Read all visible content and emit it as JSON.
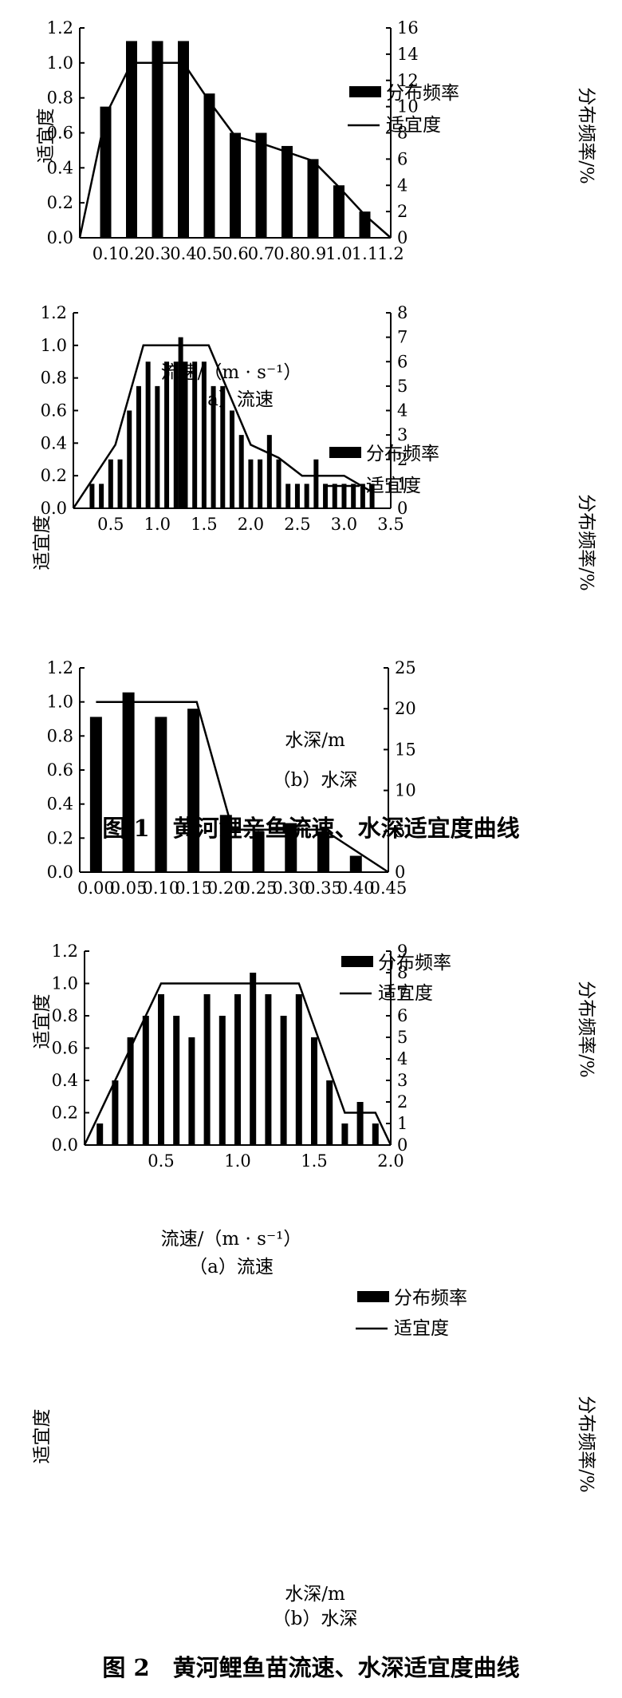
{
  "figure1": {
    "caption": "图 1　黄河鲤亲鱼流速、水深适宜度曲线",
    "charts": [
      {
        "sublabel": "（a）流速",
        "xlabel": "流速/（m · s⁻¹）",
        "ylabel_left": "适宜度",
        "ylabel_right": "分布频率/%",
        "legend_bar": "分布频率",
        "legend_line": "适宜度"
      },
      {
        "sublabel": "（b）水深",
        "xlabel": "水深/m",
        "ylabel_left": "适宜度",
        "ylabel_right": "分布频率/%",
        "legend_bar": "分布频率",
        "legend_line": "适宜度"
      }
    ]
  },
  "figure2": {
    "caption": "图 2　黄河鲤鱼苗流速、水深适宜度曲线",
    "charts": [
      {
        "sublabel": "（a）流速",
        "xlabel": "流速/（m · s⁻¹）",
        "ylabel_left": "适宜度",
        "ylabel_right": "分布频率/%",
        "legend_bar": "分布频率",
        "legend_line": "适宜度"
      },
      {
        "sublabel": "（b）水深",
        "xlabel": "水深/m",
        "ylabel_left": "适宜度",
        "ylabel_right": "分布频率/%",
        "legend_bar": "分布频率",
        "legend_line": "适宜度"
      }
    ]
  },
  "chart_data": [
    {
      "id": "c1",
      "type": "bar",
      "xlim": [
        0,
        1.2
      ],
      "ylim_left": [
        0,
        1.2
      ],
      "ylim_right": [
        0,
        16
      ],
      "x_ticks": [
        "0.1",
        "0.2",
        "0.3",
        "0.4",
        "0.5",
        "0.6",
        "0.7",
        "0.8",
        "0.9",
        "1.0",
        "1.1",
        "1.2"
      ],
      "y_ticks_left": [
        "0.0",
        "0.2",
        "0.4",
        "0.6",
        "0.8",
        "1.0",
        "1.2"
      ],
      "y_ticks_right": [
        "0",
        "2",
        "4",
        "6",
        "8",
        "10",
        "12",
        "14",
        "16"
      ],
      "bars": {
        "x": [
          0.1,
          0.2,
          0.3,
          0.4,
          0.5,
          0.6,
          0.7,
          0.8,
          0.9,
          1.0,
          1.1
        ],
        "values": [
          10,
          15,
          15,
          15,
          11,
          8,
          8,
          7,
          6,
          4,
          2
        ]
      },
      "line": {
        "x": [
          0,
          0.1,
          0.2,
          0.4,
          0.5,
          0.6,
          0.7,
          0.8,
          0.9,
          1.0,
          1.1,
          1.2
        ],
        "y": [
          0,
          0.7,
          1.0,
          1.0,
          0.78,
          0.58,
          0.54,
          0.49,
          0.44,
          0.29,
          0.13,
          0
        ]
      }
    },
    {
      "id": "c2",
      "type": "bar",
      "xlim": [
        0.1,
        3.5
      ],
      "ylim_left": [
        0,
        1.2
      ],
      "ylim_right": [
        0,
        8
      ],
      "x_ticks": [
        "0.5",
        "1.0",
        "1.5",
        "2.0",
        "2.5",
        "3.0",
        "3.5"
      ],
      "y_ticks_left": [
        "0.0",
        "0.2",
        "0.4",
        "0.6",
        "0.8",
        "1.0",
        "1.2"
      ],
      "y_ticks_right": [
        "0",
        "1",
        "2",
        "3",
        "4",
        "5",
        "6",
        "7",
        "8"
      ],
      "bars": {
        "x": [
          0.3,
          0.4,
          0.5,
          0.6,
          0.7,
          0.8,
          0.9,
          1.0,
          1.1,
          1.2,
          1.25,
          1.3,
          1.4,
          1.5,
          1.6,
          1.7,
          1.8,
          1.9,
          2.0,
          2.1,
          2.2,
          2.3,
          2.4,
          2.5,
          2.6,
          2.7,
          2.8,
          2.9,
          3.0,
          3.1,
          3.2,
          3.3
        ],
        "values": [
          1,
          1,
          2,
          2,
          4,
          5,
          6,
          5,
          6,
          6,
          7,
          6,
          6,
          6,
          5,
          5,
          4,
          3,
          2,
          2,
          3,
          2,
          1,
          1,
          1,
          2,
          1,
          1,
          1,
          1,
          1,
          1
        ]
      },
      "line": {
        "x": [
          0.1,
          0.55,
          0.85,
          1.55,
          2.0,
          2.3,
          2.55,
          3.0,
          3.3
        ],
        "y": [
          0,
          0.39,
          1.0,
          1.0,
          0.39,
          0.31,
          0.2,
          0.2,
          0.1
        ]
      }
    },
    {
      "id": "c3",
      "type": "bar",
      "xlim": [
        -0.025,
        0.45
      ],
      "ylim_left": [
        0,
        1.2
      ],
      "ylim_right": [
        0,
        25
      ],
      "x_ticks": [
        "0.00",
        "0.05",
        "0.10",
        "0.15",
        "0.20",
        "0.25",
        "0.30",
        "0.35",
        "0.40",
        "0.45"
      ],
      "y_ticks_left": [
        "0.0",
        "0.2",
        "0.4",
        "0.6",
        "0.8",
        "1.0",
        "1.2"
      ],
      "y_ticks_right": [
        "0",
        "5",
        "10",
        "15",
        "20",
        "25"
      ],
      "bars": {
        "x": [
          0.0,
          0.05,
          0.1,
          0.15,
          0.2,
          0.25,
          0.3,
          0.35,
          0.4
        ],
        "values": [
          19,
          22,
          19,
          20,
          7,
          5,
          6,
          5,
          2
        ]
      },
      "line": {
        "x": [
          0.0,
          0.155,
          0.21,
          0.35,
          0.45
        ],
        "y": [
          1.0,
          1.0,
          0.25,
          0.25,
          0
        ]
      }
    },
    {
      "id": "c4",
      "type": "bar",
      "xlim": [
        0,
        2.0
      ],
      "ylim_left": [
        0,
        1.2
      ],
      "ylim_right": [
        0,
        9
      ],
      "x_ticks": [
        "0.5",
        "1.0",
        "1.5",
        "2.0"
      ],
      "y_ticks_left": [
        "0.0",
        "0.2",
        "0.4",
        "0.6",
        "0.8",
        "1.0",
        "1.2"
      ],
      "y_ticks_right": [
        "0",
        "1",
        "2",
        "3",
        "4",
        "5",
        "6",
        "7",
        "8",
        "9"
      ],
      "bars": {
        "x": [
          0.1,
          0.2,
          0.3,
          0.4,
          0.5,
          0.6,
          0.7,
          0.8,
          0.9,
          1.0,
          1.1,
          1.2,
          1.3,
          1.4,
          1.5,
          1.6,
          1.7,
          1.8,
          1.9
        ],
        "values": [
          1,
          3,
          5,
          6,
          7,
          6,
          5,
          7,
          6,
          7,
          8,
          7,
          6,
          7,
          5,
          3,
          1,
          2,
          1
        ]
      },
      "line": {
        "x": [
          0.0,
          0.5,
          1.4,
          1.7,
          1.9,
          2.0
        ],
        "y": [
          0,
          1.0,
          1.0,
          0.2,
          0.2,
          0
        ]
      }
    }
  ]
}
